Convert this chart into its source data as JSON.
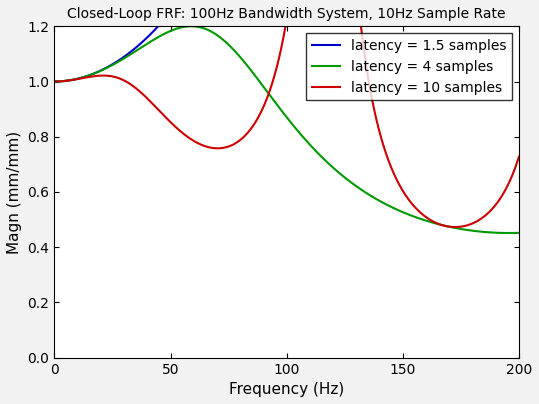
{
  "title": "Closed-Loop FRF: 100Hz Bandwidth System, 10Hz Sample Rate",
  "xlabel": "Frequency (Hz)",
  "ylabel": "Magn (mm/mm)",
  "xlim": [
    0,
    200
  ],
  "ylim": [
    0,
    1.2
  ],
  "xticks": [
    0,
    50,
    100,
    150,
    200
  ],
  "yticks": [
    0,
    0.2,
    0.4,
    0.6,
    0.8,
    1.0,
    1.2
  ],
  "bandwidth_hz": 100,
  "sample_rate_multiplier": 10,
  "latencies": [
    1.5,
    4.0,
    10.0
  ],
  "colors": [
    "#0000cc",
    "#009900",
    "#cc0000"
  ],
  "labels": [
    "latency = 1.5 samples",
    "latency = 4 samples",
    "latency = 10 samples"
  ],
  "line_width": 1.5,
  "title_fontsize": 10,
  "label_fontsize": 11,
  "tick_fontsize": 10,
  "legend_fontsize": 10,
  "background_color": "#ffffff",
  "fig_bg_color": "#f2f2f2"
}
